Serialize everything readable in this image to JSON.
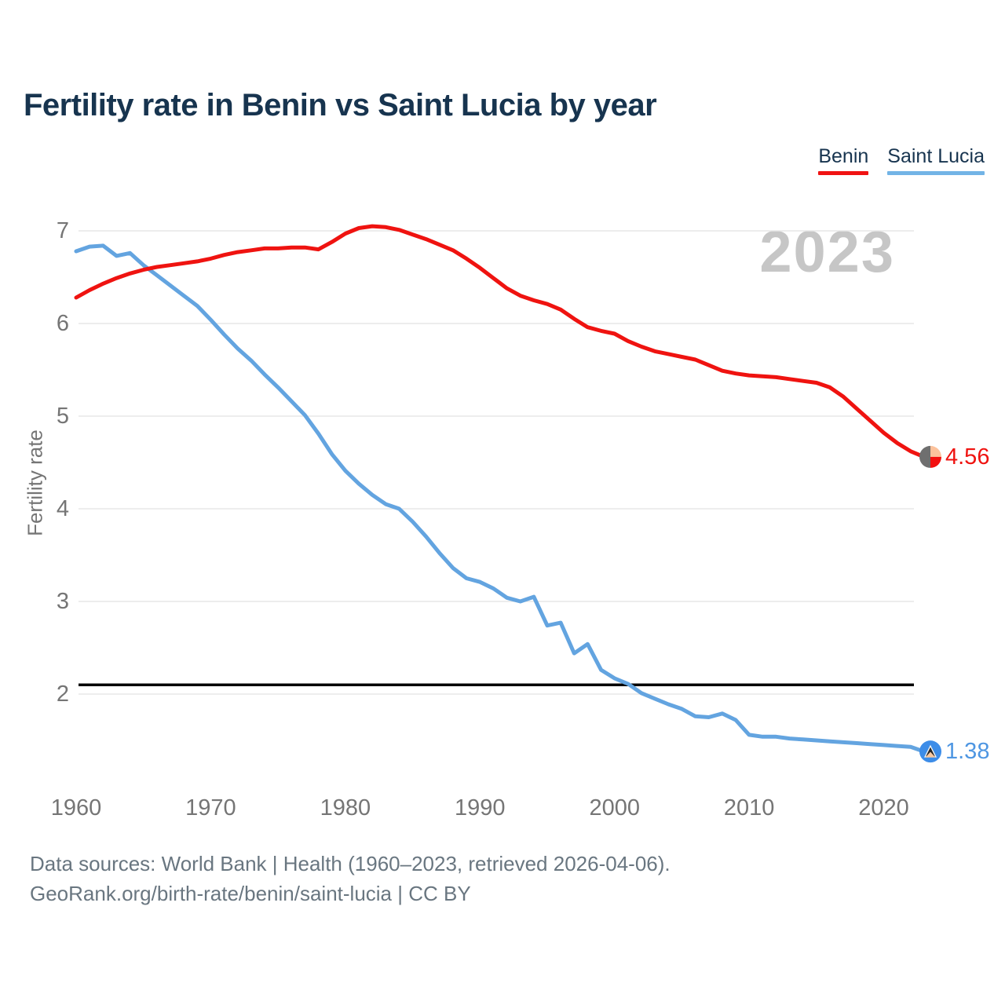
{
  "title": "Fertility rate in Benin vs Saint Lucia by year",
  "watermark": "2023",
  "legend": [
    {
      "label": "Benin",
      "color": "#f01313"
    },
    {
      "label": "Saint Lucia",
      "color": "#72b4e6"
    }
  ],
  "y_axis": {
    "label": "Fertility rate",
    "ticks": [
      7,
      6,
      5,
      4,
      3,
      2
    ]
  },
  "x_axis": {
    "ticks": [
      1960,
      1970,
      1980,
      1990,
      2000,
      2010,
      2020
    ]
  },
  "reference_line": {
    "value": 2.1,
    "color": "#000000"
  },
  "end_labels": [
    {
      "series": "Benin",
      "text": "4.56",
      "color": "#ef1310"
    },
    {
      "series": "Saint Lucia",
      "text": "1.38",
      "color": "#4e96e2"
    }
  ],
  "markers": {
    "benin_flag": {
      "left": "#6f6f6f",
      "top_right": "#fcc29c",
      "bottom_right": "#f2100f"
    },
    "saint_lucia_flag": {
      "circle": "#3d8de8",
      "triangle_white": "#f5f6f6",
      "triangle_black": "#262626",
      "triangle_gold": "#f9c79d"
    }
  },
  "footer": {
    "line1": "Data sources: World Bank | Health (1960–2023, retrieved 2026-04-06).",
    "line2": "GeoRank.org/birth-rate/benin/saint-lucia | CC BY"
  },
  "chart_data": {
    "type": "line",
    "title": "Fertility rate in Benin vs Saint Lucia by year",
    "xlabel": "",
    "ylabel": "Fertility rate",
    "xlim": [
      1960,
      2023
    ],
    "ylim": [
      1.0,
      7.4
    ],
    "grid": "horizontal",
    "legend_position": "top-right",
    "annotations": {
      "watermark": "2023",
      "replacement_rate_line": 2.1
    },
    "x": [
      1960,
      1961,
      1962,
      1963,
      1964,
      1965,
      1966,
      1967,
      1968,
      1969,
      1970,
      1971,
      1972,
      1973,
      1974,
      1975,
      1976,
      1977,
      1978,
      1979,
      1980,
      1981,
      1982,
      1983,
      1984,
      1985,
      1986,
      1987,
      1988,
      1989,
      1990,
      1991,
      1992,
      1993,
      1994,
      1995,
      1996,
      1997,
      1998,
      1999,
      2000,
      2001,
      2002,
      2003,
      2004,
      2005,
      2006,
      2007,
      2008,
      2009,
      2010,
      2011,
      2012,
      2013,
      2014,
      2015,
      2016,
      2017,
      2018,
      2019,
      2020,
      2021,
      2022,
      2023
    ],
    "series": [
      {
        "name": "Benin",
        "color": "#ef1310",
        "end_value": 4.56,
        "values": [
          6.28,
          6.36,
          6.43,
          6.49,
          6.54,
          6.58,
          6.61,
          6.63,
          6.65,
          6.67,
          6.7,
          6.74,
          6.77,
          6.79,
          6.81,
          6.81,
          6.82,
          6.82,
          6.8,
          6.88,
          6.97,
          7.03,
          7.05,
          7.04,
          7.01,
          6.96,
          6.91,
          6.85,
          6.79,
          6.7,
          6.6,
          6.49,
          6.38,
          6.3,
          6.25,
          6.21,
          6.15,
          6.05,
          5.96,
          5.92,
          5.89,
          5.81,
          5.75,
          5.7,
          5.67,
          5.64,
          5.61,
          5.55,
          5.49,
          5.46,
          5.44,
          5.43,
          5.42,
          5.4,
          5.38,
          5.36,
          5.31,
          5.21,
          5.08,
          4.95,
          4.82,
          4.71,
          4.62,
          4.56
        ]
      },
      {
        "name": "Saint Lucia",
        "color": "#63a4e0",
        "end_value": 1.38,
        "values": [
          6.78,
          6.83,
          6.84,
          6.73,
          6.76,
          6.63,
          6.52,
          6.41,
          6.3,
          6.19,
          6.04,
          5.88,
          5.73,
          5.6,
          5.45,
          5.31,
          5.16,
          5.01,
          4.81,
          4.59,
          4.41,
          4.27,
          4.15,
          4.05,
          4.0,
          3.86,
          3.7,
          3.52,
          3.36,
          3.25,
          3.21,
          3.14,
          3.04,
          3.0,
          3.05,
          2.74,
          2.77,
          2.44,
          2.54,
          2.26,
          2.17,
          2.11,
          2.01,
          1.95,
          1.89,
          1.84,
          1.76,
          1.75,
          1.79,
          1.72,
          1.56,
          1.54,
          1.54,
          1.52,
          1.51,
          1.5,
          1.49,
          1.48,
          1.47,
          1.46,
          1.45,
          1.44,
          1.43,
          1.38
        ]
      }
    ]
  }
}
